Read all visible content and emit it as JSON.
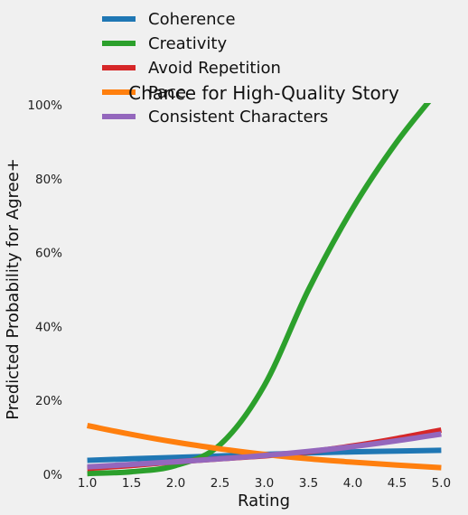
{
  "chart_data": {
    "type": "line",
    "title": "Chance for High-Quality Story",
    "xlabel": "Rating",
    "ylabel": "Predicted Probability for Agree+",
    "xlim": [
      0.8,
      5.2
    ],
    "ylim": [
      0,
      1
    ],
    "xticks": [
      1.0,
      1.5,
      2.0,
      2.5,
      3.0,
      3.5,
      4.0,
      4.5,
      5.0
    ],
    "xtick_labels": [
      "1.0",
      "1.5",
      "2.0",
      "2.5",
      "3.0",
      "3.5",
      "4.0",
      "4.5",
      "5.0"
    ],
    "yticks": [
      0,
      0.2,
      0.4,
      0.6,
      0.8,
      1.0
    ],
    "ytick_labels": [
      "0%",
      "20%",
      "40%",
      "60%",
      "80%",
      "100%"
    ],
    "grid": false,
    "legend_position": "top-left",
    "x": [
      1.0,
      1.5,
      2.0,
      2.5,
      3.0,
      3.5,
      4.0,
      4.5,
      5.0
    ],
    "series": [
      {
        "name": "Coherence",
        "color": "#1f77b4",
        "values": [
          0.038,
          0.042,
          0.046,
          0.05,
          0.054,
          0.058,
          0.061,
          0.063,
          0.065
        ]
      },
      {
        "name": "Creativity",
        "color": "#2ca02c",
        "values": [
          0.002,
          0.007,
          0.024,
          0.08,
          0.24,
          0.5,
          0.72,
          0.9,
          1.05
        ]
      },
      {
        "name": "Avoid Repetition",
        "color": "#d62728",
        "values": [
          0.016,
          0.024,
          0.034,
          0.042,
          0.05,
          0.061,
          0.077,
          0.097,
          0.12
        ]
      },
      {
        "name": "Pace",
        "color": "#ff7f0e",
        "values": [
          0.132,
          0.108,
          0.087,
          0.069,
          0.054,
          0.042,
          0.033,
          0.025,
          0.018
        ]
      },
      {
        "name": "Consistent Characters",
        "color": "#9467bd",
        "values": [
          0.02,
          0.027,
          0.034,
          0.042,
          0.051,
          0.062,
          0.075,
          0.091,
          0.109
        ]
      }
    ]
  }
}
